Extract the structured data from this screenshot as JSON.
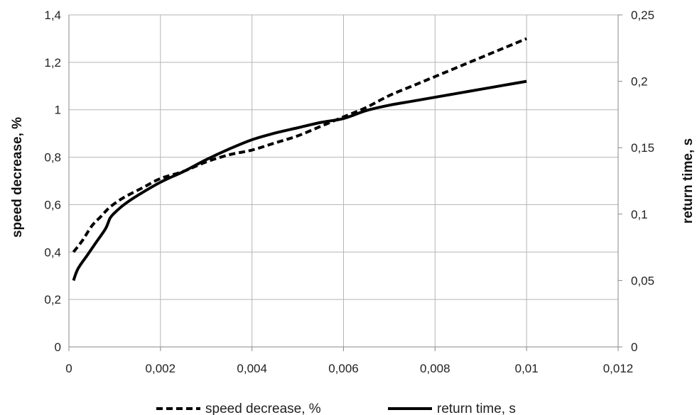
{
  "chart_data": {
    "type": "line",
    "x_axis": {
      "range": [
        0,
        0.012
      ],
      "ticks": [
        0,
        0.002,
        0.004,
        0.006,
        0.008,
        0.01,
        0.012
      ],
      "tick_labels": [
        "0",
        "0,002",
        "0,004",
        "0,006",
        "0,008",
        "0,01",
        "0,012"
      ],
      "label": ""
    },
    "y_left": {
      "label": "speed decrease, %",
      "range": [
        0,
        1.4
      ],
      "ticks": [
        0,
        0.2,
        0.4,
        0.6,
        0.8,
        1.0,
        1.2,
        1.4
      ],
      "tick_labels": [
        "0",
        "0,2",
        "0,4",
        "0,6",
        "0,8",
        "1",
        "1,2",
        "1,4"
      ]
    },
    "y_right": {
      "label": "return time, s",
      "range": [
        0,
        0.25
      ],
      "ticks": [
        0,
        0.05,
        0.1,
        0.15,
        0.2,
        0.25
      ],
      "tick_labels": [
        "0",
        "0,05",
        "0,1",
        "0,15",
        "0,2",
        "0,25"
      ]
    },
    "grid": true,
    "legend_position": "bottom",
    "series": [
      {
        "name": "speed decrease, %",
        "axis": "left",
        "style": "dashed",
        "color": "#000000",
        "x": [
          0.0001,
          0.0003,
          0.0005,
          0.0007,
          0.0009,
          0.0012,
          0.0016,
          0.002,
          0.0025,
          0.003,
          0.0035,
          0.004,
          0.0045,
          0.005,
          0.0055,
          0.006,
          0.0065,
          0.007,
          0.0075,
          0.008,
          0.0085,
          0.009,
          0.0095,
          0.01
        ],
        "values": [
          0.4,
          0.45,
          0.51,
          0.55,
          0.59,
          0.63,
          0.67,
          0.71,
          0.74,
          0.78,
          0.81,
          0.83,
          0.86,
          0.89,
          0.93,
          0.97,
          1.01,
          1.06,
          1.1,
          1.14,
          1.18,
          1.22,
          1.26,
          1.3
        ]
      },
      {
        "name": "return time, s",
        "axis": "right",
        "style": "solid",
        "color": "#000000",
        "x": [
          0.0001,
          0.0002,
          0.0004,
          0.0006,
          0.0008,
          0.0009,
          0.001,
          0.0012,
          0.0015,
          0.002,
          0.0025,
          0.003,
          0.0035,
          0.004,
          0.0045,
          0.005,
          0.0055,
          0.006,
          0.0065,
          0.007,
          0.0075,
          0.008,
          0.0085,
          0.009,
          0.0095,
          0.01
        ],
        "values": [
          0.05,
          0.059,
          0.069,
          0.079,
          0.089,
          0.097,
          0.101,
          0.107,
          0.114,
          0.124,
          0.132,
          0.141,
          0.149,
          0.156,
          0.161,
          0.165,
          0.169,
          0.172,
          0.178,
          0.182,
          0.185,
          0.188,
          0.191,
          0.194,
          0.197,
          0.2
        ]
      }
    ]
  }
}
